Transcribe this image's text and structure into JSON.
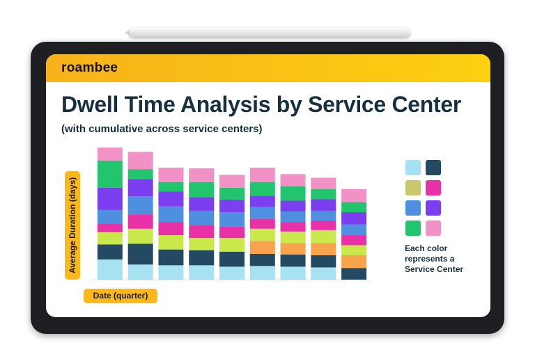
{
  "brand": {
    "logo": "roambee"
  },
  "header": {
    "title": "Dwell Time Analysis by Service Center",
    "subtitle": "(with cumulative across service centers)"
  },
  "legend": {
    "note": "Each color represents a Service Center",
    "colors": [
      "#a7e2f2",
      "#244a63",
      "#c9c86c",
      "#e831a6",
      "#4f8fe0",
      "#7b3ff0",
      "#22c56e",
      "#f291c6"
    ]
  },
  "chart_data": {
    "type": "bar",
    "stacked": true,
    "xlabel": "Date (quarter)",
    "ylabel": "Average Duration (days)",
    "ylim": [
      0,
      190
    ],
    "categories": [
      "",
      "",
      "",
      "",
      "",
      "",
      "",
      "",
      ""
    ],
    "segment_colors": [
      "#a7e2f2",
      "#244a63",
      "#c9e84a",
      "#e831a6",
      "#4f8fe0",
      "#7b3ff0",
      "#22c56e",
      "#f291c6",
      "#f9a34c",
      "#22c56e",
      "#f291c6",
      "#4f8fe0",
      "#7b3ff0"
    ],
    "bars": [
      [
        {
          "c": 0,
          "v": 28
        },
        {
          "c": 1,
          "v": 21
        },
        {
          "c": 2,
          "v": 17
        },
        {
          "c": 3,
          "v": 12
        },
        {
          "c": 4,
          "v": 19
        },
        {
          "c": 5,
          "v": 31
        },
        {
          "c": 6,
          "v": 38
        },
        {
          "c": 7,
          "v": 18
        }
      ],
      [
        {
          "c": 0,
          "v": 21
        },
        {
          "c": 1,
          "v": 29
        },
        {
          "c": 2,
          "v": 21
        },
        {
          "c": 3,
          "v": 20
        },
        {
          "c": 4,
          "v": 25
        },
        {
          "c": 5,
          "v": 24
        },
        {
          "c": 6,
          "v": 14
        },
        {
          "c": 7,
          "v": 24
        }
      ],
      [
        {
          "c": 0,
          "v": 20
        },
        {
          "c": 1,
          "v": 22
        },
        {
          "c": 2,
          "v": 20
        },
        {
          "c": 3,
          "v": 18
        },
        {
          "c": 4,
          "v": 22
        },
        {
          "c": 5,
          "v": 21
        },
        {
          "c": 6,
          "v": 13
        },
        {
          "c": 7,
          "v": 20
        }
      ],
      [
        {
          "c": 0,
          "v": 20
        },
        {
          "c": 1,
          "v": 21
        },
        {
          "c": 2,
          "v": 17
        },
        {
          "c": 3,
          "v": 18
        },
        {
          "c": 4,
          "v": 20
        },
        {
          "c": 5,
          "v": 19
        },
        {
          "c": 6,
          "v": 21
        },
        {
          "c": 7,
          "v": 19
        }
      ],
      [
        {
          "c": 0,
          "v": 18
        },
        {
          "c": 1,
          "v": 21
        },
        {
          "c": 2,
          "v": 19
        },
        {
          "c": 3,
          "v": 16
        },
        {
          "c": 4,
          "v": 20
        },
        {
          "c": 5,
          "v": 17
        },
        {
          "c": 6,
          "v": 17
        },
        {
          "c": 7,
          "v": 18
        }
      ],
      [
        {
          "c": 0,
          "v": 19
        },
        {
          "c": 1,
          "v": 17
        },
        {
          "c": 8,
          "v": 18
        },
        {
          "c": 2,
          "v": 17
        },
        {
          "c": 3,
          "v": 14
        },
        {
          "c": 4,
          "v": 16
        },
        {
          "c": 5,
          "v": 16
        },
        {
          "c": 6,
          "v": 19
        },
        {
          "c": 7,
          "v": 20
        }
      ],
      [
        {
          "c": 0,
          "v": 18
        },
        {
          "c": 1,
          "v": 17
        },
        {
          "c": 8,
          "v": 16
        },
        {
          "c": 2,
          "v": 16
        },
        {
          "c": 3,
          "v": 13
        },
        {
          "c": 4,
          "v": 15
        },
        {
          "c": 5,
          "v": 15
        },
        {
          "c": 6,
          "v": 20
        },
        {
          "c": 7,
          "v": 17
        }
      ],
      [
        {
          "c": 0,
          "v": 17
        },
        {
          "c": 1,
          "v": 17
        },
        {
          "c": 8,
          "v": 17
        },
        {
          "c": 2,
          "v": 18
        },
        {
          "c": 3,
          "v": 13
        },
        {
          "c": 4,
          "v": 14
        },
        {
          "c": 5,
          "v": 16
        },
        {
          "c": 6,
          "v": 14
        },
        {
          "c": 7,
          "v": 16
        }
      ],
      [
        {
          "c": 1,
          "v": 16
        },
        {
          "c": 8,
          "v": 18
        },
        {
          "c": 2,
          "v": 14
        },
        {
          "c": 3,
          "v": 14
        },
        {
          "c": 4,
          "v": 15
        },
        {
          "c": 5,
          "v": 17
        },
        {
          "c": 6,
          "v": 14
        },
        {
          "c": 7,
          "v": 18
        }
      ]
    ]
  }
}
